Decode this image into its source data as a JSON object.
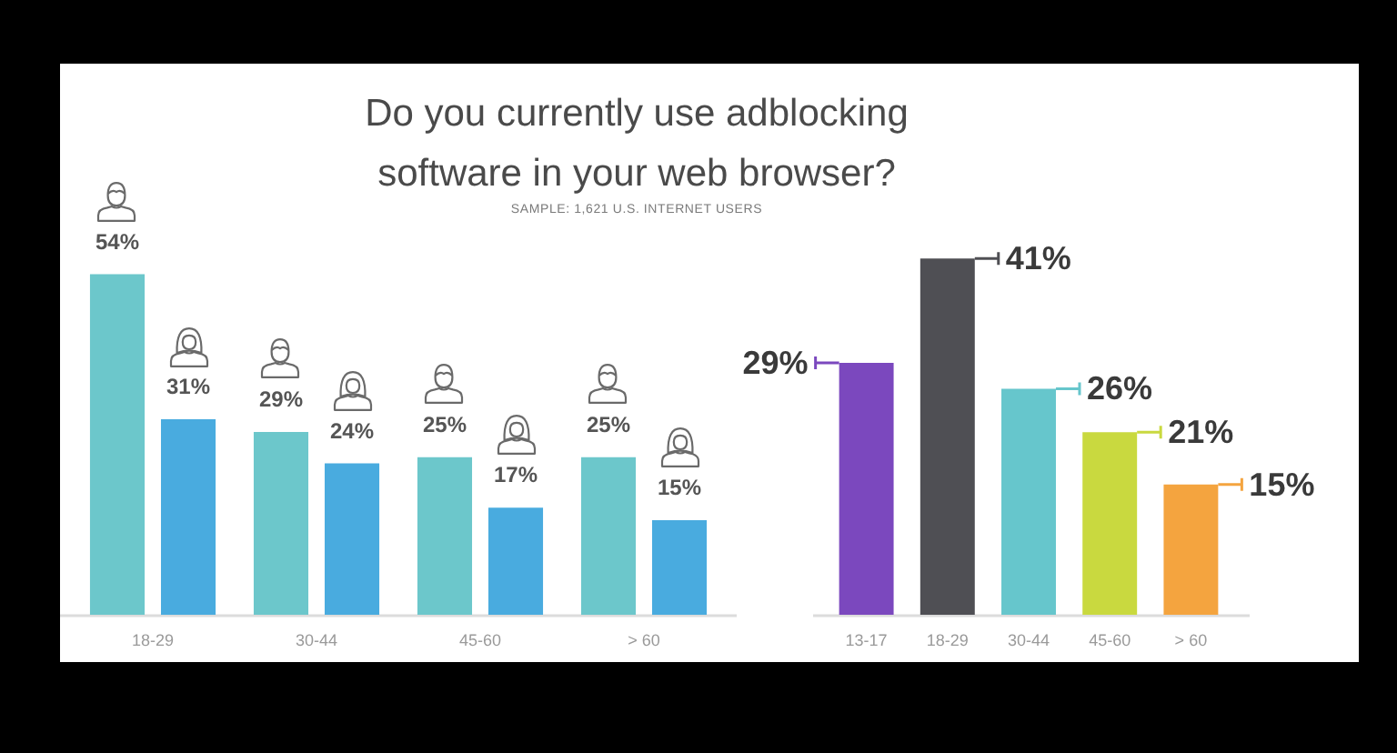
{
  "chart_data": [
    {
      "type": "bar",
      "title": "Do you currently use adblocking software in your web browser?",
      "subtitle": "SAMPLE: 1,621 U.S. INTERNET USERS",
      "categories": [
        "18-29",
        "30-44",
        "45-60",
        "> 60"
      ],
      "series": [
        {
          "color": "#6cc7cb",
          "values": [
            54,
            29,
            25,
            25
          ],
          "value_labels": [
            "54%",
            "29%",
            "25%",
            "25%"
          ]
        },
        {
          "color": "#49abdf",
          "values": [
            31,
            24,
            17,
            15
          ],
          "value_labels": [
            "31%",
            "24%",
            "17%",
            "15%"
          ]
        }
      ],
      "tick_labels": "x"
    },
    {
      "type": "bar",
      "categories": [
        "13-17",
        "18-29",
        "30-44",
        "45-60",
        "> 60"
      ],
      "values": [
        29,
        41,
        26,
        21,
        15
      ],
      "colors": [
        "#7b48be",
        "#4f4f54",
        "#66c6cc",
        "#c9d93f",
        "#f4a43f"
      ],
      "value_labels": [
        "29%",
        "41%",
        "26%",
        "21%",
        "15%"
      ],
      "tick_labels": "x"
    }
  ]
}
